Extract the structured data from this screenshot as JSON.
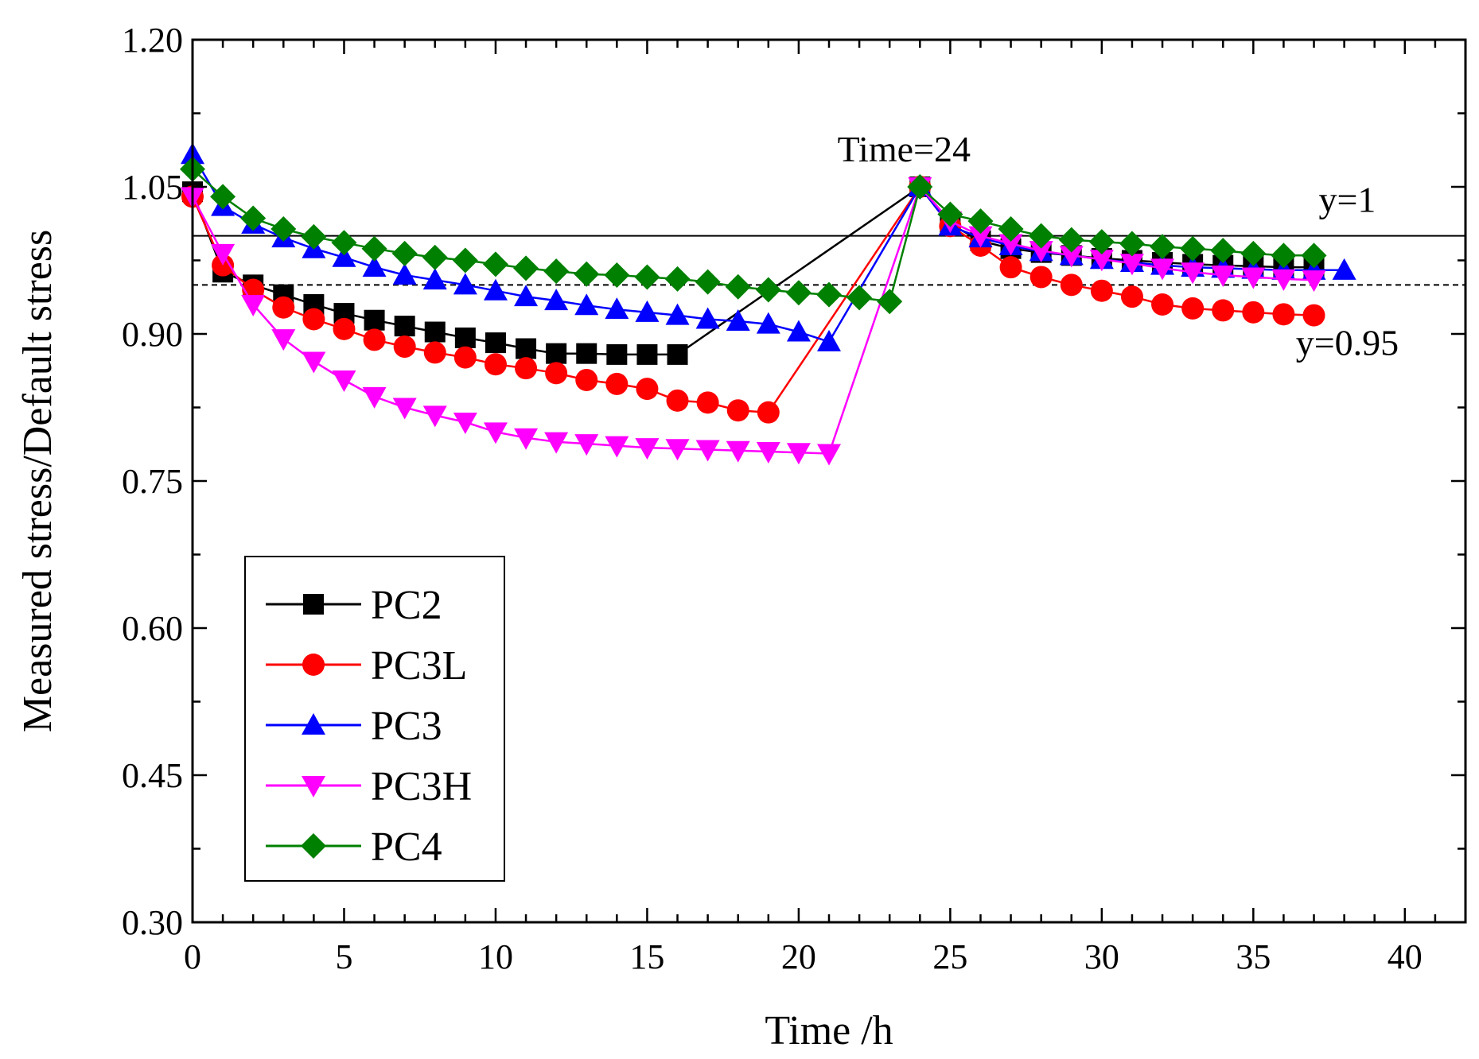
{
  "chart_data": {
    "type": "line",
    "title": "",
    "xlabel": "Time /h",
    "ylabel": "Measured stress/Default stress",
    "xlim": [
      0,
      42
    ],
    "ylim": [
      0.3,
      1.2
    ],
    "x_ticks": [
      "0",
      "5",
      "10",
      "15",
      "20",
      "25",
      "30",
      "35",
      "40"
    ],
    "y_ticks": [
      "0.30",
      "0.45",
      "0.60",
      "0.75",
      "0.90",
      "1.05",
      "1.20"
    ],
    "grid": false,
    "legend_position": "bottom-left",
    "reference_lines": [
      {
        "name": "y=1",
        "value": 1.0,
        "style": "solid",
        "label": "y=1"
      },
      {
        "name": "y=0.95",
        "value": 0.95,
        "style": "dashed",
        "label": "y=0.95"
      }
    ],
    "annotations": [
      {
        "text": "Time=24",
        "x": 24,
        "y": 1.05
      }
    ],
    "series": [
      {
        "name": "PC2",
        "color": "#000000",
        "marker": "square",
        "x": [
          0,
          1,
          2,
          3,
          4,
          5,
          6,
          7,
          8,
          9,
          10,
          11,
          12,
          13,
          14,
          15,
          16,
          24,
          25,
          26,
          27,
          28,
          29,
          30,
          31,
          32,
          33,
          34,
          35,
          36,
          37
        ],
        "y": [
          1.045,
          0.963,
          0.95,
          0.94,
          0.93,
          0.921,
          0.914,
          0.908,
          0.902,
          0.896,
          0.891,
          0.885,
          0.88,
          0.88,
          0.879,
          0.879,
          0.879,
          1.05,
          1.012,
          0.995,
          0.987,
          0.983,
          0.98,
          0.977,
          0.975,
          0.973,
          0.971,
          0.97,
          0.969,
          0.968,
          0.968
        ]
      },
      {
        "name": "PC3L",
        "color": "#ff0000",
        "marker": "circle",
        "x": [
          0,
          1,
          2,
          3,
          4,
          5,
          6,
          7,
          8,
          9,
          10,
          11,
          12,
          13,
          14,
          15,
          16,
          17,
          18,
          19,
          24,
          25,
          26,
          27,
          28,
          29,
          30,
          31,
          32,
          33,
          34,
          35,
          36,
          37
        ],
        "y": [
          1.04,
          0.97,
          0.945,
          0.927,
          0.915,
          0.905,
          0.894,
          0.887,
          0.881,
          0.876,
          0.869,
          0.865,
          0.86,
          0.853,
          0.849,
          0.844,
          0.832,
          0.83,
          0.822,
          0.82,
          1.05,
          1.01,
          0.99,
          0.968,
          0.958,
          0.95,
          0.944,
          0.938,
          0.93,
          0.926,
          0.924,
          0.922,
          0.92,
          0.919
        ]
      },
      {
        "name": "PC3",
        "color": "#0000ff",
        "marker": "triangle-up",
        "x": [
          0,
          1,
          2,
          3,
          4,
          5,
          6,
          7,
          8,
          9,
          10,
          11,
          12,
          13,
          14,
          15,
          16,
          17,
          18,
          19,
          20,
          21,
          24,
          25,
          26,
          27,
          28,
          29,
          30,
          31,
          32,
          33,
          34,
          35,
          36,
          37,
          38
        ],
        "y": [
          1.083,
          1.03,
          1.012,
          0.998,
          0.987,
          0.978,
          0.968,
          0.96,
          0.955,
          0.95,
          0.944,
          0.938,
          0.934,
          0.929,
          0.925,
          0.922,
          0.919,
          0.915,
          0.913,
          0.91,
          0.902,
          0.892,
          1.05,
          1.01,
          0.998,
          0.99,
          0.984,
          0.98,
          0.976,
          0.973,
          0.97,
          0.968,
          0.967,
          0.966,
          0.965,
          0.965,
          0.965
        ]
      },
      {
        "name": "PC3H",
        "color": "#ff00ff",
        "marker": "triangle-down",
        "x": [
          0,
          1,
          2,
          3,
          4,
          5,
          6,
          7,
          8,
          9,
          10,
          11,
          12,
          13,
          14,
          15,
          16,
          17,
          18,
          19,
          20,
          21,
          24,
          25,
          26,
          27,
          28,
          29,
          30,
          31,
          32,
          33,
          34,
          35,
          36,
          37
        ],
        "y": [
          1.04,
          0.982,
          0.93,
          0.895,
          0.872,
          0.853,
          0.836,
          0.825,
          0.817,
          0.81,
          0.8,
          0.794,
          0.79,
          0.788,
          0.786,
          0.784,
          0.783,
          0.782,
          0.781,
          0.78,
          0.779,
          0.778,
          1.05,
          1.015,
          1.0,
          0.992,
          0.985,
          0.98,
          0.976,
          0.972,
          0.967,
          0.963,
          0.96,
          0.958,
          0.956,
          0.955
        ]
      },
      {
        "name": "PC4",
        "color": "#008000",
        "marker": "diamond",
        "x": [
          0,
          1,
          2,
          3,
          4,
          5,
          6,
          7,
          8,
          9,
          10,
          11,
          12,
          13,
          14,
          15,
          16,
          17,
          18,
          19,
          20,
          21,
          22,
          23,
          24,
          25,
          26,
          27,
          28,
          29,
          30,
          31,
          32,
          33,
          34,
          35,
          36,
          37
        ],
        "y": [
          1.068,
          1.04,
          1.018,
          1.007,
          0.999,
          0.993,
          0.987,
          0.982,
          0.978,
          0.975,
          0.971,
          0.967,
          0.964,
          0.961,
          0.96,
          0.958,
          0.956,
          0.953,
          0.948,
          0.945,
          0.942,
          0.94,
          0.937,
          0.933,
          1.05,
          1.022,
          1.015,
          1.007,
          1.0,
          0.996,
          0.994,
          0.992,
          0.989,
          0.987,
          0.985,
          0.982,
          0.98,
          0.98
        ]
      }
    ]
  }
}
